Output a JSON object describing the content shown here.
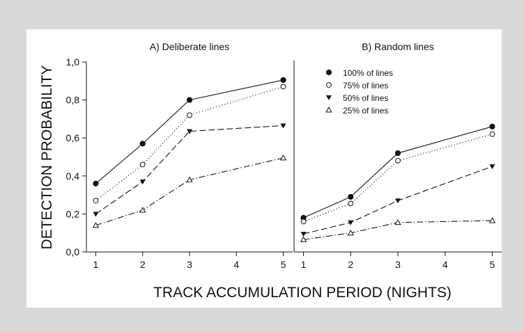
{
  "figure": {
    "ylabel": "DETECTION PROBABILITY",
    "xlabel": "TRACK ACCUMULATION PERIOD (NIGHTS)",
    "background_color": "#d9d9d9",
    "panel_color": "#ffffff"
  },
  "legend": {
    "placement": "top-right of panel B",
    "entries": [
      "100% of lines",
      "75% of lines",
      "50% of lines",
      "25% of lines"
    ],
    "markers": [
      "filled-circle",
      "open-circle",
      "filled-triangle-down",
      "open-triangle-up"
    ],
    "line_styles": [
      "solid",
      "dotted",
      "dashed",
      "dash-dot"
    ]
  },
  "chart_data": [
    {
      "type": "line",
      "title": "A) Deliberate lines",
      "x": [
        1,
        2,
        3,
        5
      ],
      "xticks": [
        "1",
        "2",
        "3",
        "4",
        "5"
      ],
      "xlim": [
        0.8,
        5.2
      ],
      "ylim": [
        0,
        1
      ],
      "yticks": [
        "0,0",
        "0,2",
        "0,4",
        "0,6",
        "0,8",
        "1,0"
      ],
      "series": [
        {
          "name": "100% of lines",
          "values": [
            0.36,
            0.57,
            0.8,
            0.905
          ]
        },
        {
          "name": "75% of lines",
          "values": [
            0.27,
            0.46,
            0.72,
            0.87
          ]
        },
        {
          "name": "50% of lines",
          "values": [
            0.2,
            0.37,
            0.635,
            0.665
          ]
        },
        {
          "name": "25% of lines",
          "values": [
            0.14,
            0.22,
            0.38,
            0.495
          ]
        }
      ]
    },
    {
      "type": "line",
      "title": "B) Random lines",
      "x": [
        1,
        2,
        3,
        5
      ],
      "xticks": [
        "1",
        "2",
        "3",
        "4",
        "5"
      ],
      "xlim": [
        0.8,
        5.2
      ],
      "ylim": [
        0,
        1
      ],
      "series": [
        {
          "name": "100% of lines",
          "values": [
            0.18,
            0.29,
            0.52,
            0.66
          ]
        },
        {
          "name": "75% of lines",
          "values": [
            0.16,
            0.255,
            0.48,
            0.62
          ]
        },
        {
          "name": "50% of lines",
          "values": [
            0.095,
            0.155,
            0.27,
            0.45
          ]
        },
        {
          "name": "25% of lines",
          "values": [
            0.065,
            0.1,
            0.155,
            0.165
          ]
        }
      ]
    }
  ]
}
